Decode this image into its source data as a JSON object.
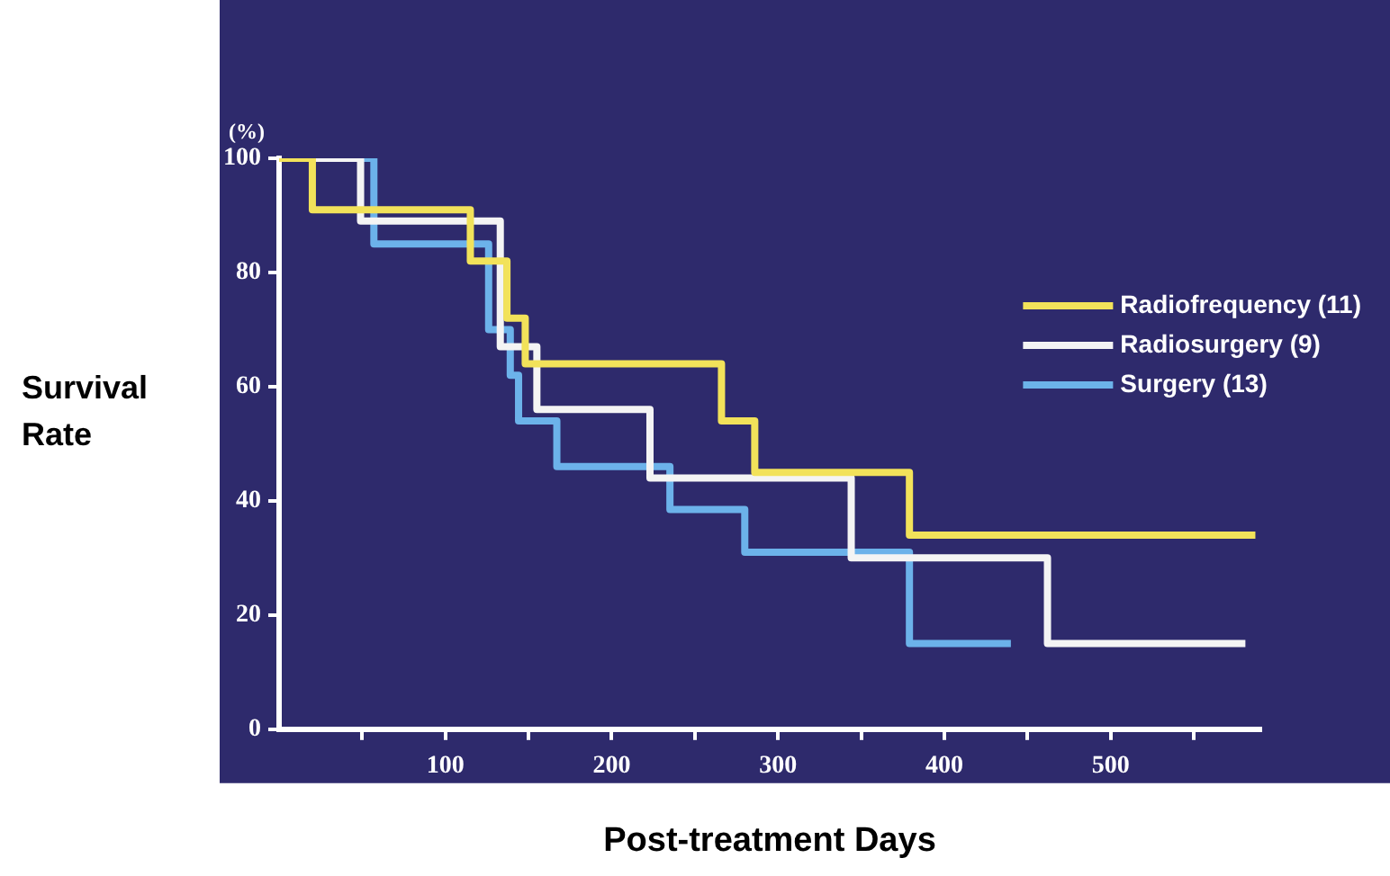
{
  "chart_data": {
    "type": "step",
    "xlabel": "Post-treatment Days",
    "ylabel": "Survival Rate",
    "annotations": [
      "(%)"
    ],
    "xlim": [
      0,
      590
    ],
    "ylim": [
      0,
      100
    ],
    "xticks": [
      {
        "value": 50,
        "label": null
      },
      100,
      {
        "value": 150,
        "label": null
      },
      200,
      {
        "value": 250,
        "label": null
      },
      300,
      {
        "value": 350,
        "label": null
      },
      400,
      {
        "value": 450,
        "label": null
      },
      500,
      {
        "value": 550,
        "label": null
      }
    ],
    "yticks": [
      0,
      20,
      40,
      60,
      80,
      100
    ],
    "grid": false,
    "legend": "top right",
    "marker": "none",
    "line_style": "solid",
    "series": [
      {
        "name": "Radiofrequency (11)",
        "color": "#f2e25a",
        "x": [
          0,
          20,
          115,
          137,
          148,
          266,
          286,
          379,
          587
        ],
        "values": [
          100,
          91,
          82,
          72,
          64,
          54,
          45,
          34,
          34
        ]
      },
      {
        "name": "Radiosurgery (9)",
        "color": "#f4f4f4",
        "x": [
          0,
          49,
          133,
          155,
          223,
          344,
          462,
          581
        ],
        "values": [
          100,
          89,
          67,
          56,
          44,
          30,
          15,
          15
        ]
      },
      {
        "name": "Surgery (13)",
        "color": "#6cb2ea",
        "x": [
          0,
          57,
          126,
          139,
          144,
          167,
          235,
          280,
          379,
          440
        ],
        "values": [
          100,
          85,
          70,
          62,
          54,
          46,
          38.5,
          31,
          15,
          15
        ]
      }
    ]
  }
}
